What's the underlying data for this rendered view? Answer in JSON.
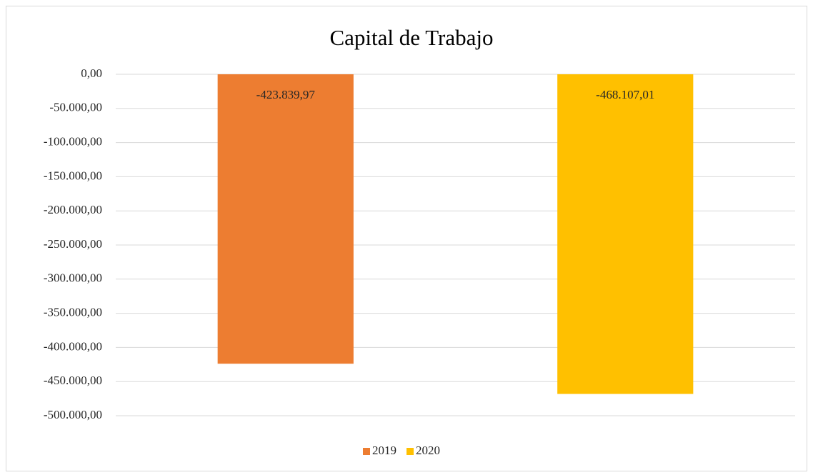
{
  "chart_data": {
    "type": "bar",
    "title": "Capital de Trabajo",
    "categories": [
      null
    ],
    "series": [
      {
        "name": "2019",
        "color": "#ed7d31",
        "values": [
          -423839.97
        ],
        "value_labels": [
          "-423.839,97"
        ]
      },
      {
        "name": "2020",
        "color": "#ffc000",
        "values": [
          -468107.01
        ],
        "value_labels": [
          "-468.107,01"
        ]
      }
    ],
    "ylim": [
      -500000,
      0
    ],
    "yticks": [
      {
        "value": 0,
        "label": "0,00"
      },
      {
        "value": -50000,
        "label": "-50.000,00"
      },
      {
        "value": -100000,
        "label": "-100.000,00"
      },
      {
        "value": -150000,
        "label": "-150.000,00"
      },
      {
        "value": -200000,
        "label": "-200.000,00"
      },
      {
        "value": -250000,
        "label": "-250.000,00"
      },
      {
        "value": -300000,
        "label": "-300.000,00"
      },
      {
        "value": -350000,
        "label": "-350.000,00"
      },
      {
        "value": -400000,
        "label": "-400.000,00"
      },
      {
        "value": -450000,
        "label": "-450.000,00"
      },
      {
        "value": -500000,
        "label": "-500.000,00"
      }
    ],
    "grid": true,
    "legend": "bottom"
  }
}
